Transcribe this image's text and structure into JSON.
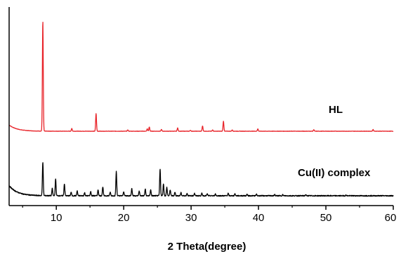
{
  "chart_data": {
    "type": "line",
    "title": "",
    "xlabel": "2 Theta(degree)",
    "ylabel": "",
    "xlim": [
      3,
      60
    ],
    "x_ticks": [
      10,
      20,
      30,
      40,
      50,
      60
    ],
    "x_minor_ticks": [
      5,
      15,
      25,
      35,
      45,
      55
    ],
    "yticks_shown": false,
    "grid": false,
    "legend": "none",
    "series": [
      {
        "name": "HL",
        "color": "#e8242a",
        "baseline": 0,
        "start_level": 0.08,
        "peaks": [
          {
            "x": 8.0,
            "h": 1.0
          },
          {
            "x": 12.3,
            "h": 0.025
          },
          {
            "x": 15.9,
            "h": 0.16
          },
          {
            "x": 20.6,
            "h": 0.012
          },
          {
            "x": 23.5,
            "h": 0.022
          },
          {
            "x": 23.8,
            "h": 0.038
          },
          {
            "x": 25.6,
            "h": 0.016
          },
          {
            "x": 28.0,
            "h": 0.03
          },
          {
            "x": 29.9,
            "h": 0.008
          },
          {
            "x": 31.7,
            "h": 0.048
          },
          {
            "x": 33.2,
            "h": 0.012
          },
          {
            "x": 34.8,
            "h": 0.09
          },
          {
            "x": 36.1,
            "h": 0.012
          },
          {
            "x": 39.9,
            "h": 0.022
          },
          {
            "x": 48.2,
            "h": 0.014
          },
          {
            "x": 57.0,
            "h": 0.015
          }
        ]
      },
      {
        "name": "Cu(II) complex",
        "color": "#000000",
        "baseline": 0,
        "start_level": 0.12,
        "peaks": [
          {
            "x": 8.0,
            "h": 0.28
          },
          {
            "x": 9.4,
            "h": 0.06
          },
          {
            "x": 9.9,
            "h": 0.14
          },
          {
            "x": 11.2,
            "h": 0.1
          },
          {
            "x": 12.2,
            "h": 0.03
          },
          {
            "x": 13.1,
            "h": 0.04
          },
          {
            "x": 14.2,
            "h": 0.025
          },
          {
            "x": 15.1,
            "h": 0.035
          },
          {
            "x": 16.2,
            "h": 0.05
          },
          {
            "x": 16.9,
            "h": 0.075
          },
          {
            "x": 18.0,
            "h": 0.03
          },
          {
            "x": 18.9,
            "h": 0.2
          },
          {
            "x": 20.0,
            "h": 0.035
          },
          {
            "x": 21.2,
            "h": 0.06
          },
          {
            "x": 22.3,
            "h": 0.04
          },
          {
            "x": 23.2,
            "h": 0.055
          },
          {
            "x": 24.0,
            "h": 0.05
          },
          {
            "x": 25.4,
            "h": 0.22
          },
          {
            "x": 25.9,
            "h": 0.1
          },
          {
            "x": 26.4,
            "h": 0.07
          },
          {
            "x": 26.9,
            "h": 0.05
          },
          {
            "x": 27.6,
            "h": 0.03
          },
          {
            "x": 28.5,
            "h": 0.025
          },
          {
            "x": 29.4,
            "h": 0.02
          },
          {
            "x": 30.5,
            "h": 0.02
          },
          {
            "x": 31.6,
            "h": 0.02
          },
          {
            "x": 32.4,
            "h": 0.015
          },
          {
            "x": 33.6,
            "h": 0.015
          },
          {
            "x": 35.5,
            "h": 0.02
          },
          {
            "x": 36.5,
            "h": 0.015
          },
          {
            "x": 38.3,
            "h": 0.012
          },
          {
            "x": 39.7,
            "h": 0.012
          },
          {
            "x": 42.4,
            "h": 0.01
          },
          {
            "x": 43.6,
            "h": 0.008
          },
          {
            "x": 47.0,
            "h": 0.008
          },
          {
            "x": 53.0,
            "h": 0.006
          }
        ]
      }
    ]
  }
}
